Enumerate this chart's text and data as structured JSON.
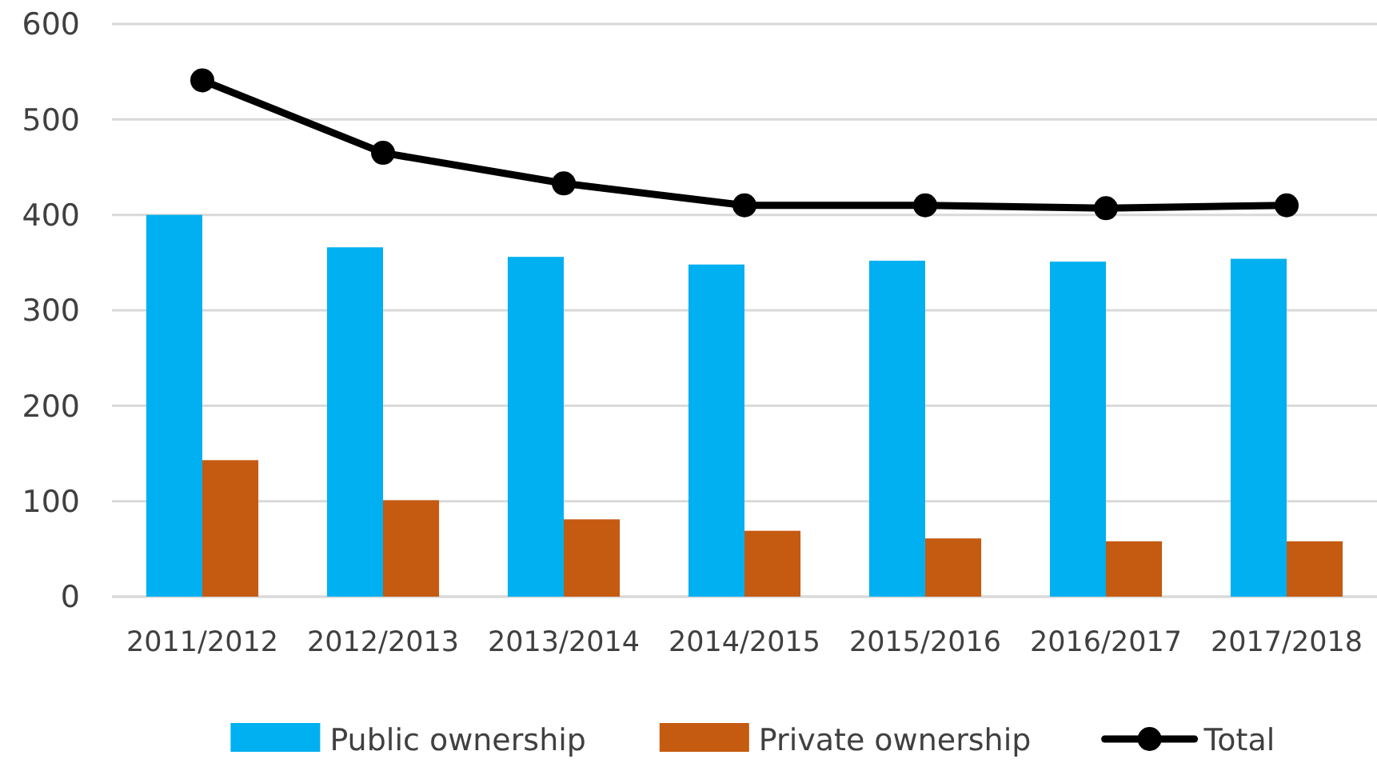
{
  "chart_data": {
    "type": "bar",
    "categories": [
      "2011/2012",
      "2012/2013",
      "2013/2014",
      "2014/2015",
      "2015/2016",
      "2016/2017",
      "2017/2018"
    ],
    "series": [
      {
        "name": "Public ownership",
        "color": "#00b0f0",
        "values": [
          400,
          366,
          356,
          348,
          352,
          351,
          354
        ]
      },
      {
        "name": "Private ownership",
        "color": "#c55a11",
        "values": [
          143,
          101,
          81,
          69,
          61,
          58,
          58
        ]
      },
      {
        "name": "Total",
        "type": "line",
        "color": "#000000",
        "values": [
          541,
          465,
          433,
          410,
          410,
          407,
          410
        ]
      }
    ],
    "ylim": [
      0,
      600
    ],
    "yticks": [
      0,
      100,
      200,
      300,
      400,
      500,
      600
    ],
    "grid": "y",
    "legend": "bottom",
    "marker": "circle",
    "line_style": "solid"
  }
}
